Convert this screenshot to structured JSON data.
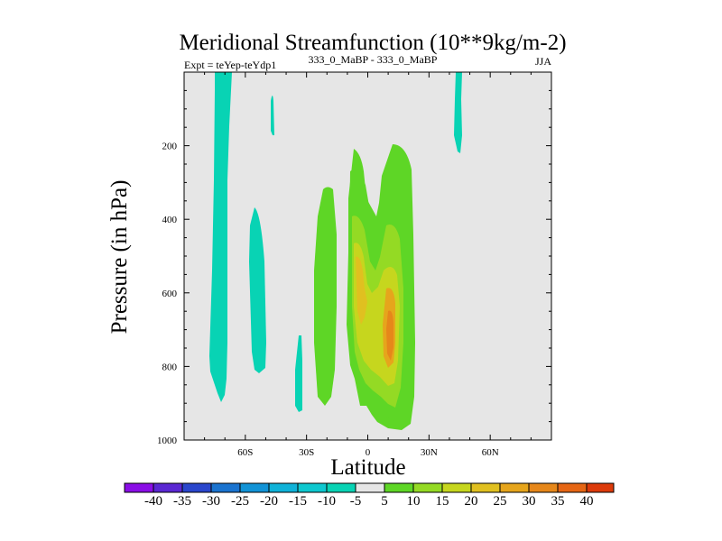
{
  "chart_data": {
    "type": "contour",
    "title": "Meridional Streamfunction (10**9kg/m-2)",
    "left_string": "Expt = teYep-teYdp1",
    "center_string": "333_0_MaBP - 333_0_MaBP",
    "right_string": "JJA",
    "xlabel": "Latitude",
    "ylabel": "Pressure (in hPa)",
    "xlim": [
      -90,
      90
    ],
    "ylim": [
      1000,
      0
    ],
    "x_ticks": [
      {
        "value": -60,
        "label": "60S"
      },
      {
        "value": -30,
        "label": "30S"
      },
      {
        "value": 0,
        "label": "0"
      },
      {
        "value": 30,
        "label": "30N"
      },
      {
        "value": 60,
        "label": "60N"
      }
    ],
    "y_ticks": [
      {
        "value": 200,
        "label": "200"
      },
      {
        "value": 400,
        "label": "400"
      },
      {
        "value": 600,
        "label": "600"
      },
      {
        "value": 800,
        "label": "800"
      },
      {
        "value": 1000,
        "label": "1000"
      }
    ],
    "colorbar": {
      "levels": [
        -40,
        -35,
        -30,
        -25,
        -20,
        -15,
        -10,
        -5,
        5,
        10,
        15,
        20,
        25,
        30,
        35,
        40
      ],
      "level_labels": [
        "-40",
        "-35",
        "-30",
        "-25",
        "-20",
        "-15",
        "-10",
        "-5",
        "5",
        "10",
        "15",
        "20",
        "25",
        "30",
        "35",
        "40"
      ],
      "colors": [
        "#8a0ee6",
        "#5a28d2",
        "#2a46cc",
        "#1a73cf",
        "#1193d6",
        "#0fb2d8",
        "#0ec8cf",
        "#08d3b4",
        "#e6e6e6",
        "#5ed626",
        "#94da24",
        "#c6d61e",
        "#e0c020",
        "#e6a51c",
        "#e6871a",
        "#e66614",
        "#dc3a0a"
      ]
    },
    "background_color": "#e6e6e6",
    "regions": [
      {
        "level": "-10 to -5",
        "color": "#08d3b4",
        "lat_range": [
          -76,
          -68
        ],
        "pressure_range": [
          0,
          900
        ]
      },
      {
        "level": "-10 to -5",
        "color": "#08d3b4",
        "lat_range": [
          -47,
          -46
        ],
        "pressure_range": [
          50,
          175
        ]
      },
      {
        "level": "-10 to -5",
        "color": "#08d3b4",
        "lat_range": [
          -58,
          -51
        ],
        "pressure_range": [
          375,
          825
        ]
      },
      {
        "level": "-10 to -5",
        "color": "#08d3b4",
        "lat_range": [
          -33,
          -30
        ],
        "pressure_range": [
          700,
          925
        ]
      },
      {
        "level": "-10 to -5",
        "color": "#08d3b4",
        "lat_range": [
          43,
          46
        ],
        "pressure_range": [
          0,
          215
        ]
      },
      {
        "level": "5 to 10",
        "color": "#5ed626",
        "lat_range": [
          -26,
          -14
        ],
        "pressure_range": [
          300,
          950
        ]
      },
      {
        "level": "5 to 10",
        "color": "#5ed626",
        "lat_range": [
          -6,
          7
        ],
        "pressure_range": [
          180,
          975
        ]
      },
      {
        "level": "5 to 10",
        "color": "#5ed626",
        "lat_range": [
          7,
          21
        ],
        "pressure_range": [
          180,
          975
        ]
      },
      {
        "level": "10 to 15",
        "color": "#94da24",
        "lat_range": [
          -7,
          20
        ],
        "pressure_range": [
          250,
          900
        ]
      },
      {
        "level": "15 to 20",
        "color": "#c6d61e",
        "lat_range": [
          -6,
          19
        ],
        "pressure_range": [
          360,
          860
        ]
      },
      {
        "level": "20 to 25",
        "color": "#e0c020",
        "lat_range": [
          -5,
          18
        ],
        "pressure_range": [
          420,
          820
        ]
      },
      {
        "level": "25 to 30",
        "color": "#e6a51c",
        "lat_range": [
          -4,
          16
        ],
        "pressure_range": [
          450,
          800
        ]
      },
      {
        "level": "30 to 35",
        "color": "#e6871a",
        "lat_range": [
          -3,
          14
        ],
        "pressure_range": [
          530,
          780
        ]
      }
    ]
  }
}
